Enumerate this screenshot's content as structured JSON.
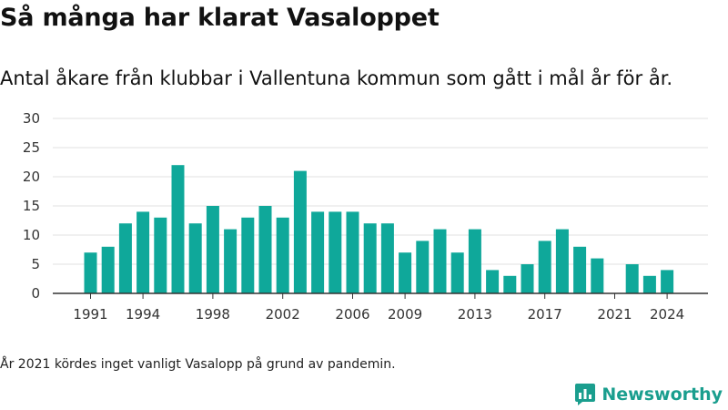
{
  "header": {
    "title": "Så många har klarat Vasaloppet",
    "subtitle": "Antal åkare från klubbar i Vallentuna kommun som gått i mål år för år."
  },
  "footnote": "År 2021 kördes inget vanligt Vasalopp på grund av pandemin.",
  "brand": {
    "name": "Newsworthy",
    "icon": "newsworthy-logo-icon",
    "color": "#1a9e8e"
  },
  "colors": {
    "bar": "#0fa89a",
    "grid": "#e2e2e2",
    "axis": "#333333"
  },
  "chart_data": {
    "type": "bar",
    "title": "",
    "xlabel": "",
    "ylabel": "",
    "ylim": [
      0,
      30
    ],
    "yticks": [
      0,
      5,
      10,
      15,
      20,
      25,
      30
    ],
    "grid": true,
    "xtick_labels": [
      "1991",
      "1994",
      "1998",
      "2002",
      "2006",
      "2009",
      "2013",
      "2017",
      "2021",
      "2024"
    ],
    "categories": [
      "1991",
      "1992",
      "1993",
      "1994",
      "1995",
      "1996",
      "1997",
      "1998",
      "1999",
      "2000",
      "2001",
      "2002",
      "2003",
      "2004",
      "2005",
      "2006",
      "2007",
      "2008",
      "2009",
      "2010",
      "2011",
      "2012",
      "2013",
      "2014",
      "2015",
      "2016",
      "2017",
      "2018",
      "2019",
      "2020",
      "2021",
      "2022",
      "2023",
      "2024"
    ],
    "values": [
      7,
      8,
      12,
      14,
      13,
      22,
      12,
      15,
      11,
      13,
      15,
      13,
      21,
      14,
      14,
      14,
      12,
      12,
      7,
      9,
      11,
      7,
      11,
      4,
      3,
      5,
      9,
      11,
      8,
      6,
      null,
      5,
      3,
      4
    ]
  }
}
